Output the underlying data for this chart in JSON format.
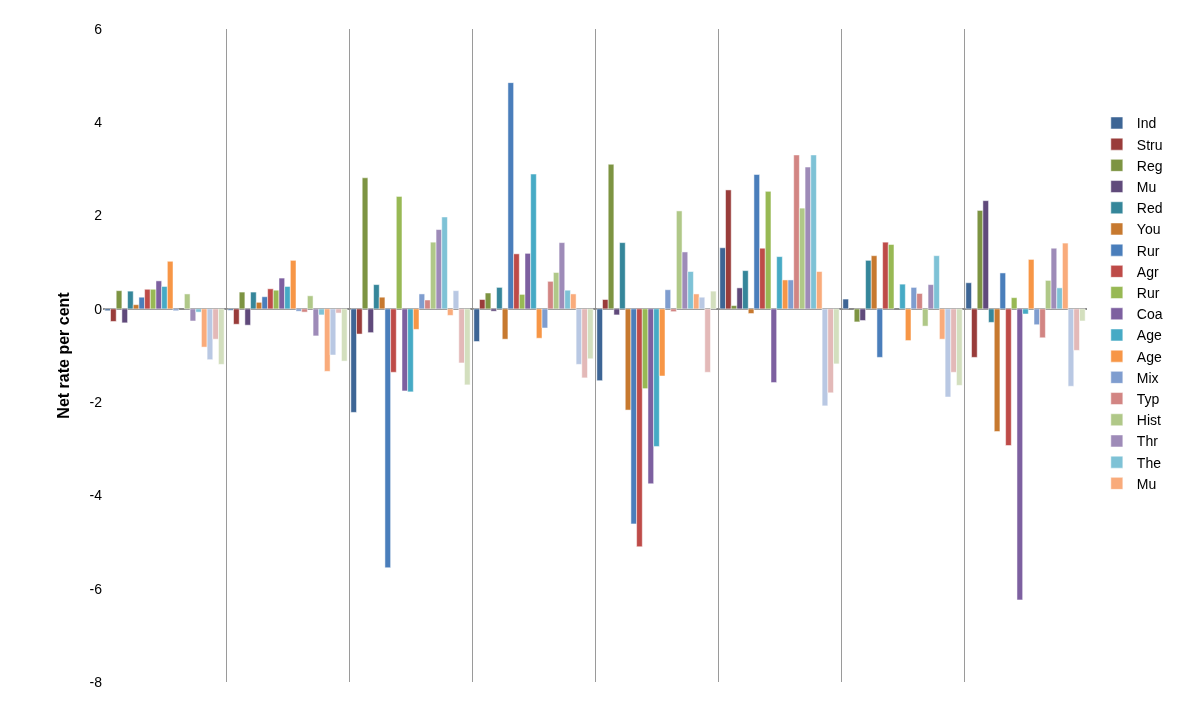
{
  "chart_data": {
    "type": "bar",
    "ylabel": "Net rate per cent",
    "categories": [
      null,
      null,
      null,
      null,
      null,
      null,
      null,
      null
    ],
    "ylim": [
      -8,
      6
    ],
    "yticks": [
      -8,
      -6,
      -4,
      -2,
      0,
      2,
      4,
      6
    ],
    "grid": "x",
    "legend": "right",
    "series": [
      {
        "name": "Ind",
        "color": "#3d6595",
        "values": [
          -0.04,
          -0.03,
          -2.22,
          -0.7,
          -1.54,
          1.31,
          0.21,
          0.56
        ]
      },
      {
        "name": "Stru",
        "color": "#993c3a",
        "values": [
          -0.27,
          -0.33,
          -0.54,
          0.2,
          0.2,
          2.55,
          null,
          -1.04
        ]
      },
      {
        "name": "Reg",
        "color": "#7d9442",
        "values": [
          0.39,
          0.36,
          2.81,
          0.34,
          3.1,
          0.07,
          -0.28,
          2.11
        ]
      },
      {
        "name": "Mu",
        "color": "#604a7b",
        "values": [
          -0.3,
          -0.35,
          -0.51,
          -0.05,
          -0.13,
          0.45,
          -0.25,
          2.32
        ]
      },
      {
        "name": "Red",
        "color": "#35869a",
        "values": [
          0.38,
          0.36,
          0.52,
          0.46,
          1.42,
          0.82,
          1.04,
          -0.29
        ]
      },
      {
        "name": "You",
        "color": "#c7792f",
        "values": [
          0.09,
          0.14,
          0.25,
          -0.65,
          -2.17,
          -0.1,
          1.14,
          -2.63
        ]
      },
      {
        "name": "Rur",
        "color": "#4a7ebb",
        "values": [
          0.25,
          0.26,
          -5.55,
          4.85,
          -4.61,
          2.88,
          -1.04,
          0.77
        ]
      },
      {
        "name": "Agr",
        "color": "#be4b48",
        "values": [
          0.42,
          0.43,
          -1.36,
          1.18,
          -5.1,
          1.3,
          1.43,
          -2.93
        ]
      },
      {
        "name": "Rur",
        "color": "#98b954",
        "values": [
          0.42,
          0.4,
          2.41,
          0.31,
          -1.71,
          2.52,
          1.38,
          0.24
        ]
      },
      {
        "name": "Coa",
        "color": "#7d60a0",
        "values": [
          0.6,
          0.66,
          -1.76,
          1.19,
          -3.75,
          -1.58,
          null,
          -6.24
        ]
      },
      {
        "name": "Age",
        "color": "#46aac5",
        "values": [
          0.48,
          0.48,
          -1.78,
          2.89,
          -2.95,
          1.12,
          0.53,
          -0.11
        ]
      },
      {
        "name": "Age",
        "color": "#f79646",
        "values": [
          1.02,
          1.04,
          -0.44,
          -0.63,
          -1.44,
          0.62,
          -0.68,
          1.06
        ]
      },
      {
        "name": "Mix",
        "color": "#7f9dcf",
        "values": [
          -0.04,
          -0.05,
          0.32,
          -0.41,
          0.41,
          0.62,
          0.46,
          -0.34
        ]
      },
      {
        "name": "Typ",
        "color": "#d28583",
        "values": [
          null,
          -0.07,
          0.19,
          0.59,
          -0.06,
          3.3,
          0.33,
          -0.62
        ]
      },
      {
        "name": "Hist",
        "color": "#b0c888",
        "values": [
          0.32,
          0.28,
          1.43,
          0.78,
          2.1,
          2.16,
          -0.37,
          0.61
        ]
      },
      {
        "name": "Thr",
        "color": "#9e8bb8",
        "values": [
          -0.26,
          -0.58,
          1.7,
          1.42,
          1.22,
          3.04,
          0.52,
          1.3
        ]
      },
      {
        "name": "The",
        "color": "#7ec2d6",
        "values": [
          -0.07,
          -0.13,
          1.97,
          0.4,
          0.8,
          3.3,
          1.14,
          0.45
        ]
      },
      {
        "name": "Mu",
        "color": "#f9ab7b",
        "values": [
          -0.82,
          -1.34,
          -0.14,
          0.32,
          0.32,
          0.8,
          -0.65,
          1.41
        ]
      },
      {
        "color": "#b9c8e3",
        "values": [
          -1.09,
          -0.99,
          0.39,
          -1.19,
          0.25,
          -2.08,
          -1.89,
          -1.66
        ]
      },
      {
        "color": "#e3b9b8",
        "values": [
          -0.65,
          -0.09,
          -1.16,
          -1.48,
          -1.36,
          -1.8,
          -1.36,
          -0.89
        ]
      },
      {
        "color": "#d3dfbe",
        "values": [
          -1.19,
          -1.12,
          -1.63,
          -1.07,
          0.38,
          -1.18,
          -1.64,
          -0.26
        ]
      }
    ]
  }
}
